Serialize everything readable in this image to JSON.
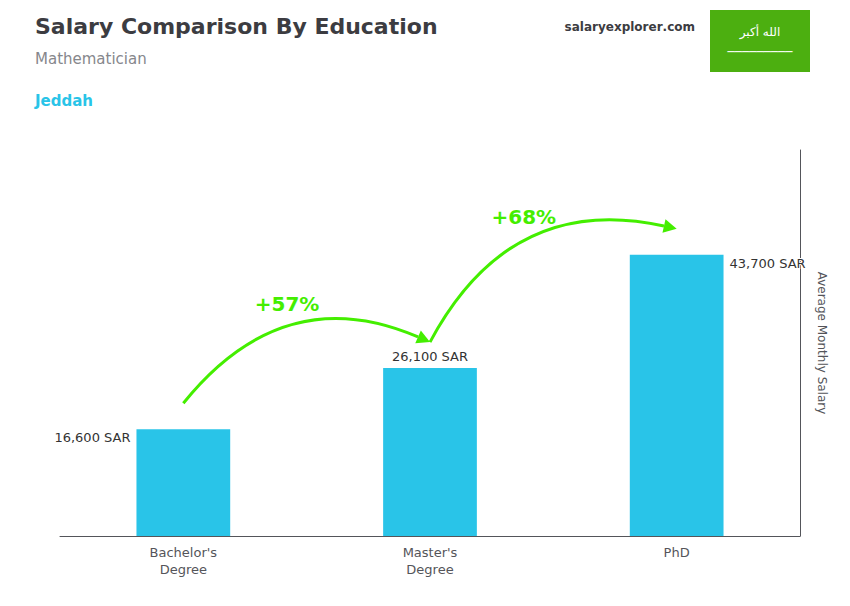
{
  "chart_data": {
    "type": "bar",
    "title": "Salary Comparison By Education",
    "subtitle": "Mathematician",
    "ylabel": "Average Monthly Salary",
    "categories": [
      "Bachelor's\nDegree",
      "Master's\nDegree",
      "PhD"
    ],
    "values": [
      16600,
      26100,
      43700
    ],
    "value_labels": [
      "16,600 SAR",
      "26,100 SAR",
      "43,700 SAR"
    ],
    "data_labels": true,
    "color": "#29c4e8",
    "ylim": [
      0,
      60000
    ],
    "tick_labels": "x",
    "grid": false,
    "annotations": [
      {
        "text": "Jeddah",
        "color": "#29c4e8"
      },
      {
        "text": [
          "salary",
          "explorer",
          ".com"
        ]
      },
      {
        "text": "+57%",
        "color": "#44ee00",
        "from": 0,
        "to": 1
      },
      {
        "text": "+68%",
        "color": "#44ee00",
        "from": 1,
        "to": 2
      },
      {
        "text": [
          "الله أكبر",
          "─────────"
        ],
        "color": "#4caf10"
      }
    ]
  }
}
